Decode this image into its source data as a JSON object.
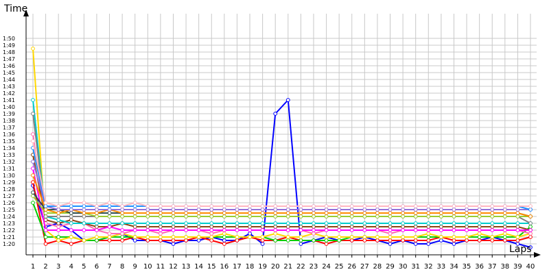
{
  "chart_data": {
    "type": "line",
    "ylabel": "Time",
    "xlabel": "Laps",
    "x": [
      1,
      2,
      3,
      4,
      5,
      6,
      7,
      8,
      9,
      10,
      11,
      12,
      13,
      14,
      15,
      16,
      17,
      18,
      19,
      20,
      21,
      22,
      23,
      24,
      25,
      26,
      27,
      28,
      29,
      30,
      31,
      32,
      33,
      34,
      35,
      36,
      37,
      38,
      39,
      40
    ],
    "yticks": [
      "1:20",
      "1:21",
      "1:22",
      "1:23",
      "1:24",
      "1:25",
      "1:26",
      "1:27",
      "1:28",
      "1:29",
      "1:30",
      "1:31",
      "1:32",
      "1:33",
      "1:34",
      "1:35",
      "1:36",
      "1:37",
      "1:38",
      "1:39",
      "1:40",
      "1:41",
      "1:42",
      "1:43",
      "1:44",
      "1:45",
      "1:46",
      "1:47",
      "1:48",
      "1:49",
      "1:50"
    ],
    "ylim_seconds": [
      79,
      110
    ],
    "grid": true,
    "series": [
      {
        "color": "#0000ff",
        "values": [
          88.5,
          82.5,
          83,
          82,
          80.5,
          80.5,
          81,
          81.5,
          80.5,
          80.5,
          80.5,
          80,
          80.5,
          80.5,
          81,
          80.5,
          80.5,
          81.5,
          80,
          99,
          101,
          80,
          80.5,
          81,
          80.5,
          80.5,
          81,
          80.5,
          80,
          80.5,
          80,
          80,
          80.5,
          80,
          80.5,
          80.5,
          81,
          80.5,
          80,
          79.5
        ]
      },
      {
        "color": "#ff0000",
        "values": [
          89,
          80,
          80.5,
          80,
          80.5,
          80.5,
          80.5,
          80.5,
          81,
          80.5,
          80.5,
          80.5,
          80.5,
          81,
          80.5,
          80,
          80.5,
          81,
          80.5,
          80.5,
          81,
          80.5,
          80.5,
          80,
          80.5,
          80.5,
          80.5,
          80.5,
          80.5,
          80.5,
          80.5,
          80.5,
          81,
          80.5,
          80.5,
          80.5,
          80.5,
          80.5,
          80.5,
          81
        ]
      },
      {
        "color": "#00cc00",
        "values": [
          86,
          81,
          81,
          81,
          80.5,
          80.5,
          81,
          81,
          81,
          81,
          81,
          81,
          81,
          81,
          81,
          81,
          81,
          81,
          81,
          80.5,
          80.5,
          80.5,
          80.5,
          80.5,
          80.5,
          81,
          81,
          81,
          81,
          81,
          81,
          81,
          81,
          81,
          81,
          81,
          81,
          81,
          81,
          82.5
        ]
      },
      {
        "color": "#ffd700",
        "values": [
          108.5,
          82,
          80.5,
          81,
          80.5,
          81,
          81,
          81.5,
          81,
          81,
          81,
          81,
          81,
          81,
          81,
          81.5,
          81,
          81,
          81,
          81.5,
          81,
          81,
          81.5,
          81,
          81,
          81,
          81,
          81,
          81,
          81,
          81,
          81.5,
          81,
          81,
          81,
          81.5,
          81,
          81.5,
          81,
          81.5
        ]
      },
      {
        "color": "#ff69b4",
        "values": [
          96,
          83,
          82.5,
          83,
          83,
          82,
          81.5,
          81.5,
          82,
          82,
          81.5,
          82,
          82,
          82,
          81.5,
          82,
          82,
          82,
          82,
          82,
          82,
          82,
          81.5,
          82,
          82,
          82,
          82,
          82,
          81.5,
          82,
          82,
          82,
          82,
          82,
          82,
          82,
          82,
          82,
          82,
          81.5
        ]
      },
      {
        "color": "#8b4513",
        "values": [
          93,
          83.5,
          83,
          83.5,
          83,
          82.5,
          82.5,
          83,
          82.5,
          82.5,
          82.5,
          82.5,
          82.5,
          82.5,
          82.5,
          82.5,
          82.5,
          82.5,
          82.5,
          82.5,
          82.5,
          82.5,
          82.5,
          82.5,
          82.5,
          82.5,
          82.5,
          82.5,
          82.5,
          82.5,
          82.5,
          82.5,
          82.5,
          82.5,
          82.5,
          82.5,
          82.5,
          82.5,
          82.5,
          82
        ]
      },
      {
        "color": "#ff00ff",
        "values": [
          91,
          82,
          82,
          82,
          82,
          82,
          82.5,
          82,
          82,
          82,
          82,
          82,
          82,
          82,
          82,
          82,
          82,
          82,
          82,
          82,
          82,
          82,
          82,
          82,
          82,
          82,
          82,
          82,
          82,
          82,
          82,
          82,
          82,
          82,
          82,
          82,
          82,
          82,
          82,
          82
        ]
      },
      {
        "color": "#00cccc",
        "values": [
          101,
          84,
          83.5,
          83,
          83,
          83,
          83,
          83,
          83,
          83,
          83,
          83,
          83,
          83,
          83,
          83,
          83,
          83,
          83,
          83,
          83,
          83,
          83,
          83,
          83,
          83,
          83,
          83,
          83,
          83,
          83,
          83,
          83,
          83,
          83,
          83,
          83,
          83,
          83,
          83
        ]
      },
      {
        "color": "#808080",
        "values": [
          99,
          84,
          84,
          84,
          84,
          84,
          84,
          84,
          84,
          84,
          84,
          84,
          84,
          84,
          84,
          84,
          84,
          84,
          84,
          84,
          84,
          84,
          84,
          84,
          84,
          84,
          84,
          84,
          84,
          84,
          84,
          84,
          84,
          84,
          84,
          84,
          84,
          84,
          84,
          83
        ]
      },
      {
        "color": "#9acd32",
        "values": [
          87,
          84.5,
          84.5,
          84.5,
          84.5,
          84,
          84,
          84,
          84,
          84,
          84,
          84,
          84,
          84,
          84,
          84,
          84,
          84,
          84,
          84,
          84,
          84,
          84,
          84,
          84,
          84,
          84,
          84,
          84,
          84,
          84,
          84,
          84,
          84,
          84,
          84,
          84,
          84,
          84,
          84
        ]
      },
      {
        "color": "#2f4f4f",
        "values": [
          87.5,
          85,
          85,
          84.5,
          84.5,
          84.5,
          84.5,
          84.5,
          84.5,
          84.5,
          84.5,
          84.5,
          84.5,
          84.5,
          84.5,
          84.5,
          84.5,
          84.5,
          84.5,
          84.5,
          84.5,
          84.5,
          84.5,
          84.5,
          84.5,
          84.5,
          84.5,
          84.5,
          84.5,
          84.5,
          84.5,
          84.5,
          84.5,
          84.5,
          84.5,
          84.5,
          84.5,
          84.5,
          84.5,
          84
        ]
      },
      {
        "color": "#ff8c00",
        "values": [
          90,
          85,
          84.5,
          85,
          84.5,
          84.5,
          85,
          84.5,
          84.5,
          84.5,
          84.5,
          84.5,
          84.5,
          84.5,
          84.5,
          84.5,
          84.5,
          84.5,
          84.5,
          84.5,
          84.5,
          84.5,
          84.5,
          84.5,
          84.5,
          84.5,
          84.5,
          84.5,
          84.5,
          84.5,
          84.5,
          84.5,
          84.5,
          84.5,
          84.5,
          84.5,
          84.5,
          84.5,
          84.5,
          84
        ]
      },
      {
        "color": "#9370db",
        "values": [
          92,
          85.5,
          85,
          85,
          85,
          85,
          85,
          85,
          85,
          85,
          85,
          85,
          85,
          85,
          85,
          85,
          85,
          85,
          85,
          85,
          85,
          85,
          85,
          85,
          85,
          85,
          85,
          85,
          85,
          85,
          85,
          85,
          85,
          85,
          85,
          85,
          85,
          85,
          85,
          85
        ]
      },
      {
        "color": "#1e90ff",
        "values": [
          94,
          85.5,
          85.5,
          85.5,
          85.5,
          85.5,
          85.5,
          85.5,
          85.5,
          85.5,
          85.5,
          85.5,
          85.5,
          85.5,
          85.5,
          85.5,
          85.5,
          85.5,
          85.5,
          85.5,
          85.5,
          85.5,
          85.5,
          85.5,
          85.5,
          85.5,
          85.5,
          85.5,
          85.5,
          85.5,
          85.5,
          85.5,
          85.5,
          85.5,
          85.5,
          85.5,
          85.5,
          85.5,
          85.5,
          85
        ]
      },
      {
        "color": "#ffb6c1",
        "values": [
          95,
          86,
          85.5,
          86,
          86,
          85.5,
          86,
          85.5,
          86,
          85.5,
          85.5,
          85.5,
          85.5,
          85.5,
          85.5,
          85.5,
          85.5,
          85.5,
          85.5,
          85.5,
          85.5,
          85.5,
          85.5,
          85.5,
          85.5,
          85.5,
          85.5,
          85.5,
          85.5,
          85.5,
          85.5,
          85.5,
          85.5,
          85.5,
          85.5,
          85.5,
          85.5,
          85.5,
          85.5,
          85.5
        ]
      }
    ]
  }
}
